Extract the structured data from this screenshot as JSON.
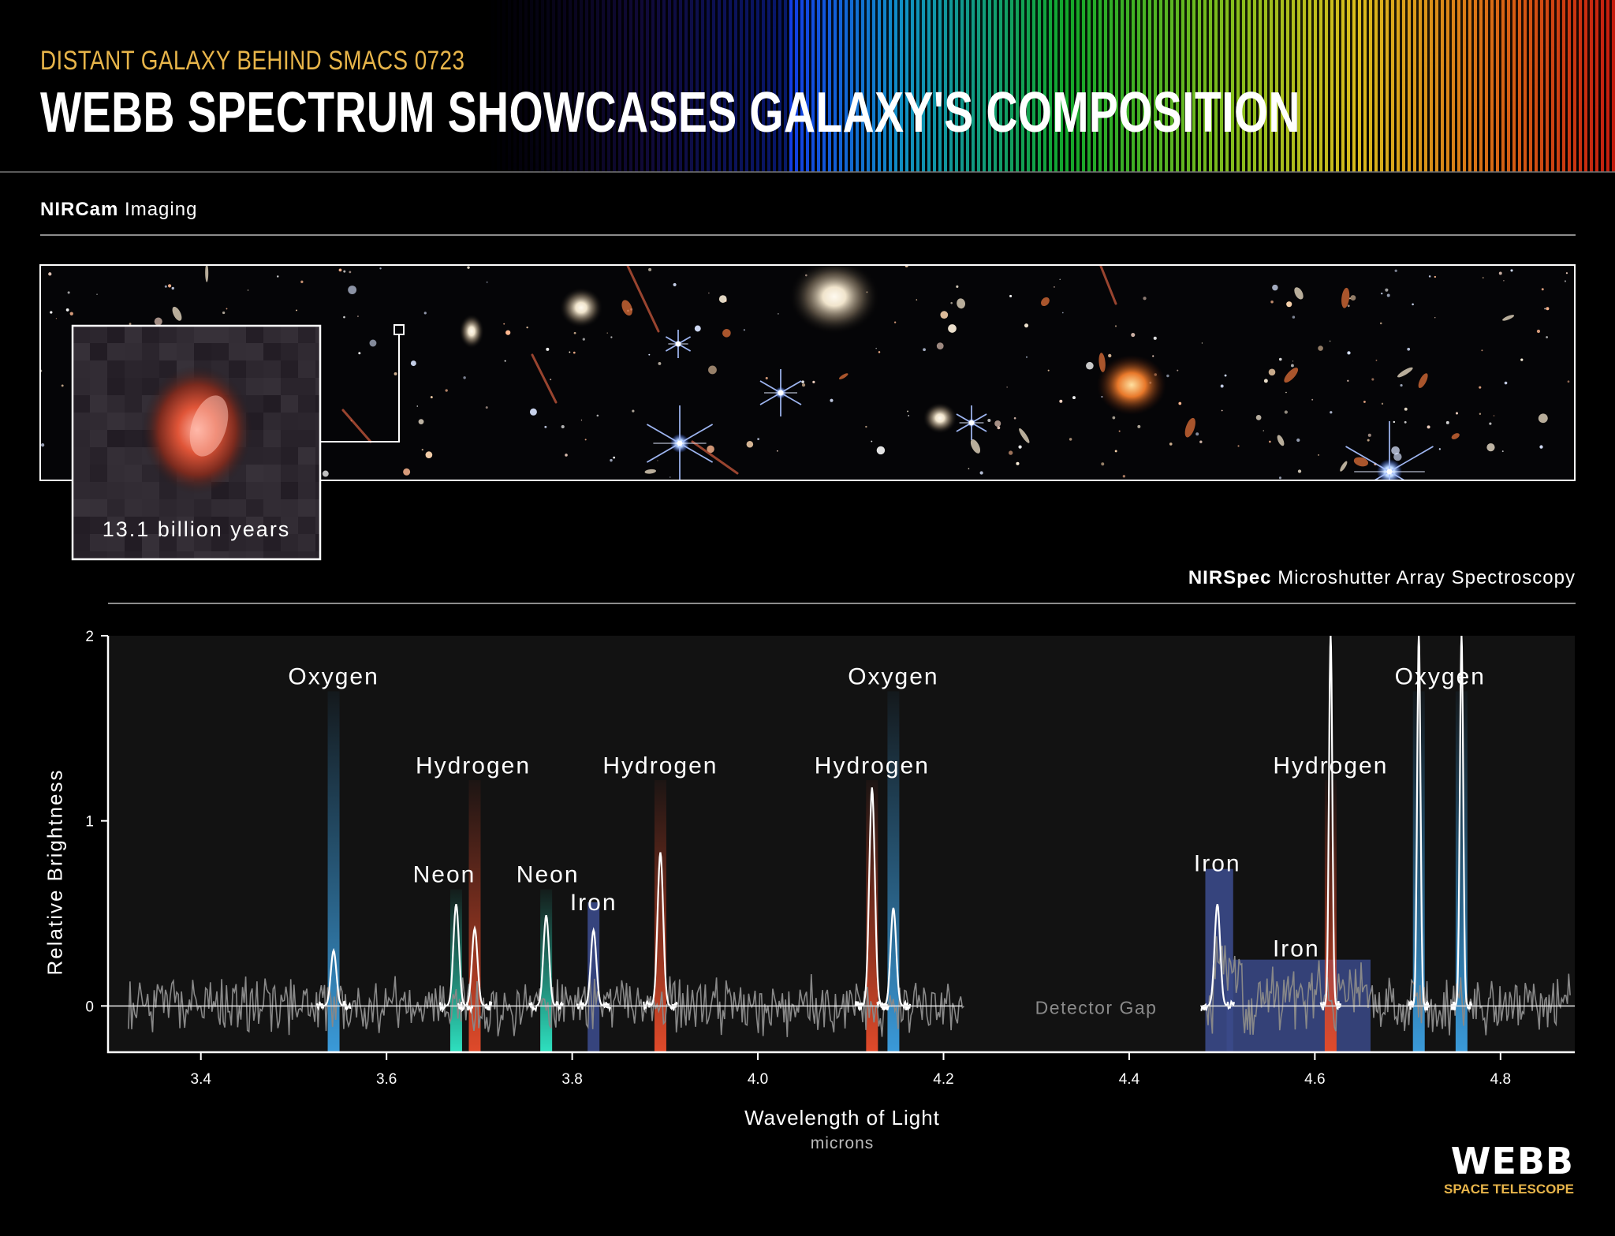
{
  "header": {
    "eyebrow": "DISTANT GALAXY BEHIND SMACS 0723",
    "title": "WEBB SPECTRUM SHOWCASES GALAXY'S COMPOSITION"
  },
  "imaging": {
    "label_bold": "NIRCam",
    "label_rest": " Imaging",
    "inset_caption": "13.1 billion years"
  },
  "spectroscopy": {
    "label_bold": "NIRSpec",
    "label_rest": " Microshutter Array Spectroscopy"
  },
  "branding": {
    "logo_text": "WEBB",
    "logo_sub": "SPACE TELESCOPE"
  },
  "colors": {
    "accent_gold": "#e8b54a",
    "oxygen": "#3a9ad9",
    "hydrogen": "#e04a2a",
    "neon": "#2ee0c0",
    "iron": "#3b4a8a"
  },
  "chart_data": {
    "type": "line",
    "xlabel": "Wavelength of Light",
    "xunit": "microns",
    "ylabel": "Relative Brightness",
    "xlim": [
      3.3,
      4.88
    ],
    "ylim": [
      -0.25,
      2
    ],
    "xticks": [
      3.4,
      3.6,
      3.8,
      4.0,
      4.2,
      4.4,
      4.6,
      4.8
    ],
    "yticks": [
      0,
      1,
      2
    ],
    "detector_gap": {
      "label": "Detector Gap",
      "range": [
        4.22,
        4.48
      ]
    },
    "elements": [
      {
        "name": "Oxygen",
        "center": 3.543,
        "type": "oxygen",
        "peak": 0.3,
        "label_y": 1.78
      },
      {
        "name": "Neon",
        "center": 3.675,
        "type": "neon",
        "peak": 0.55,
        "label_y": 0.71
      },
      {
        "name": "Hydrogen",
        "center": 3.695,
        "type": "hydrogen",
        "peak": 0.42,
        "label_y": 1.3
      },
      {
        "name": "Neon",
        "center": 3.772,
        "type": "neon",
        "peak": 0.49,
        "label_y": 0.71
      },
      {
        "name": "Iron",
        "center": 3.823,
        "type": "iron",
        "peak": 0.41,
        "label_y": 0.56
      },
      {
        "name": "Hydrogen",
        "center": 3.895,
        "type": "hydrogen",
        "peak": 0.83,
        "label_y": 1.3
      },
      {
        "name": "Hydrogen",
        "center": 4.123,
        "type": "hydrogen",
        "peak": 1.18,
        "label_y": 1.3
      },
      {
        "name": "Oxygen",
        "center": 4.146,
        "type": "oxygen",
        "peak": 0.53,
        "label_y": 1.78
      },
      {
        "name": "Iron",
        "center": 4.495,
        "type": "iron",
        "peak": 0.55,
        "label_y": 0.77
      },
      {
        "name": "Iron",
        "center": 4.58,
        "type": "iron",
        "peak": 0.25,
        "label_y": 0.31
      },
      {
        "name": "Hydrogen",
        "center": 4.617,
        "type": "hydrogen",
        "peak": 2.0,
        "label_y": 1.3
      },
      {
        "name": "Oxygen",
        "center": 4.712,
        "type": "oxygen",
        "peak": 2.0,
        "label_y": 1.78
      },
      {
        "name": "Oxygen",
        "center": 4.758,
        "type": "oxygen",
        "peak": 2.0,
        "label_y": 1.78
      }
    ]
  }
}
